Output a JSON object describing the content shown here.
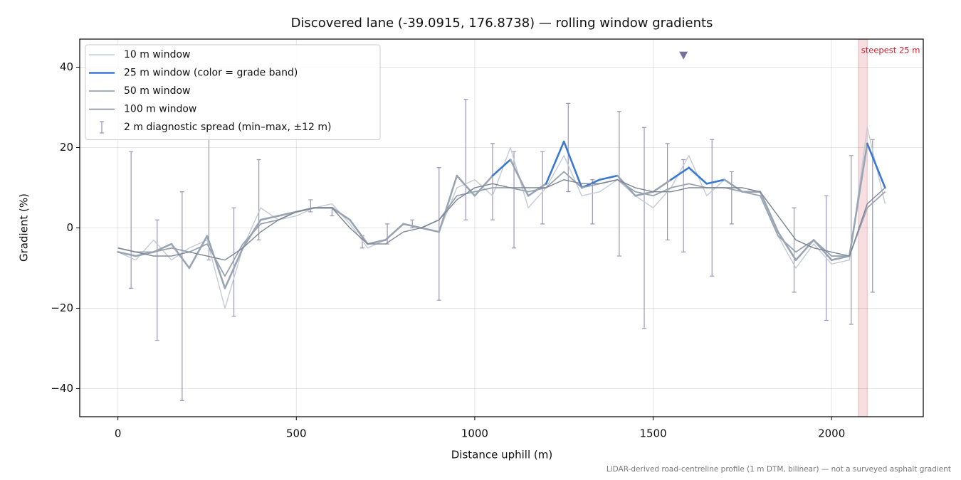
{
  "chart_data": {
    "type": "line",
    "title": "Discovered lane (-39.0915, 176.8738) — rolling window gradients",
    "x_label": "Distance uphill (m)",
    "y_label": "Gradient (%)",
    "footnote": "LiDAR-derived road-centreline profile (1 m DTM, bilinear) — not a surveyed asphalt gradient",
    "xlim": [
      -107,
      2257
    ],
    "ylim": [
      -47,
      47
    ],
    "xticks": [
      0,
      500,
      1000,
      1500,
      2000
    ],
    "yticks": [
      {
        "value": -40,
        "label": "−40"
      },
      {
        "value": -20,
        "label": "−20"
      },
      0,
      20,
      40
    ],
    "grid": true,
    "legend": "upper left",
    "x": [
      0,
      50,
      100,
      150,
      200,
      250,
      300,
      350,
      400,
      450,
      500,
      550,
      600,
      650,
      700,
      750,
      800,
      850,
      900,
      950,
      1000,
      1050,
      1100,
      1150,
      1200,
      1250,
      1300,
      1350,
      1400,
      1450,
      1500,
      1550,
      1600,
      1650,
      1700,
      1750,
      1800,
      1850,
      1900,
      1950,
      2000,
      2050,
      2100,
      2150
    ],
    "series": [
      {
        "name": "10 m window",
        "color": "#c3cbd5",
        "width": 1.4,
        "values": [
          -6,
          -8,
          -3,
          -8,
          -5,
          -3,
          -20,
          -5,
          5,
          2,
          3,
          5,
          6,
          1,
          -5,
          -3,
          1,
          0,
          -1,
          10,
          12,
          8,
          20,
          5,
          10,
          18,
          8,
          9,
          12,
          8,
          5,
          10,
          18,
          8,
          12,
          9,
          8,
          -2,
          -10,
          -4,
          -9,
          -8,
          25,
          6
        ]
      },
      {
        "name": "25 m window (color = grade band)",
        "color": "#9aa5b3",
        "width": 2.6,
        "grade_bands": [
          {
            "min": 10,
            "color": "#3a78d4"
          },
          {
            "min": 20,
            "color": "#e08a00"
          }
        ],
        "values": [
          -6,
          -7,
          -6,
          -4,
          -10,
          -2,
          -15,
          -5,
          2,
          3,
          4,
          5,
          5,
          2,
          -4,
          -3,
          1,
          0,
          -1,
          13,
          8,
          13,
          17,
          8,
          11,
          21.5,
          10,
          12,
          13,
          8,
          9,
          12,
          15,
          11,
          12,
          9,
          9,
          -1,
          -8,
          -3,
          -8,
          -7,
          21,
          10
        ]
      },
      {
        "name": "50 m window",
        "color": "#98a3b1",
        "width": 1.8,
        "values": [
          -5,
          -6,
          -6,
          -5,
          -6,
          -4,
          -12,
          -4,
          1,
          2,
          4,
          5,
          5,
          2,
          -4,
          -3,
          1,
          0,
          2,
          8,
          9,
          10,
          10,
          9,
          10,
          14,
          10,
          11,
          12,
          9,
          8,
          10,
          11,
          10,
          10,
          9,
          8,
          -2,
          -6,
          -3,
          -7,
          -7,
          5,
          9
        ]
      },
      {
        "name": "100 m window",
        "color": "#7b8594",
        "width": 1.4,
        "values": [
          -5,
          -6,
          -7,
          -7,
          -6,
          -7,
          -8,
          -5,
          -1,
          2,
          4,
          5,
          5,
          0,
          -4,
          -4,
          -1,
          0,
          2,
          7,
          10,
          11,
          10,
          10,
          10,
          12,
          11,
          11,
          12,
          10,
          9,
          9,
          10,
          10,
          10,
          10,
          9,
          3,
          -3,
          -5,
          -6,
          -7,
          6,
          10
        ]
      }
    ],
    "spread": {
      "name": "2 m diagnostic spread (min–max, ±12 m)",
      "color": "#9b95b8",
      "x": [
        37,
        110,
        180,
        255,
        325,
        395,
        540,
        600,
        685,
        755,
        825,
        900,
        975,
        1050,
        1110,
        1190,
        1262,
        1330,
        1405,
        1475,
        1540,
        1585,
        1665,
        1720,
        1895,
        1985,
        2055,
        2115
      ],
      "low": [
        -15,
        -28,
        -43,
        -8,
        -22,
        -3,
        4,
        3,
        -5,
        -4,
        0,
        -18,
        2,
        2,
        -5,
        1,
        9,
        1,
        -7,
        -25,
        -3,
        -6,
        -12,
        1,
        -16,
        -23,
        -24,
        -16
      ],
      "high": [
        19,
        2,
        9,
        24,
        5,
        17,
        7,
        5,
        -2,
        1,
        2,
        15,
        32,
        21,
        19,
        19,
        31,
        12,
        29,
        25,
        21,
        17,
        22,
        14,
        5,
        8,
        18,
        22
      ]
    },
    "marker": {
      "x": 1585,
      "y": 43,
      "color": "#7b6fa0"
    },
    "steepest": {
      "label": "steepest 25 m",
      "x": [
        2075,
        2100
      ],
      "color": "#c8202e"
    }
  }
}
